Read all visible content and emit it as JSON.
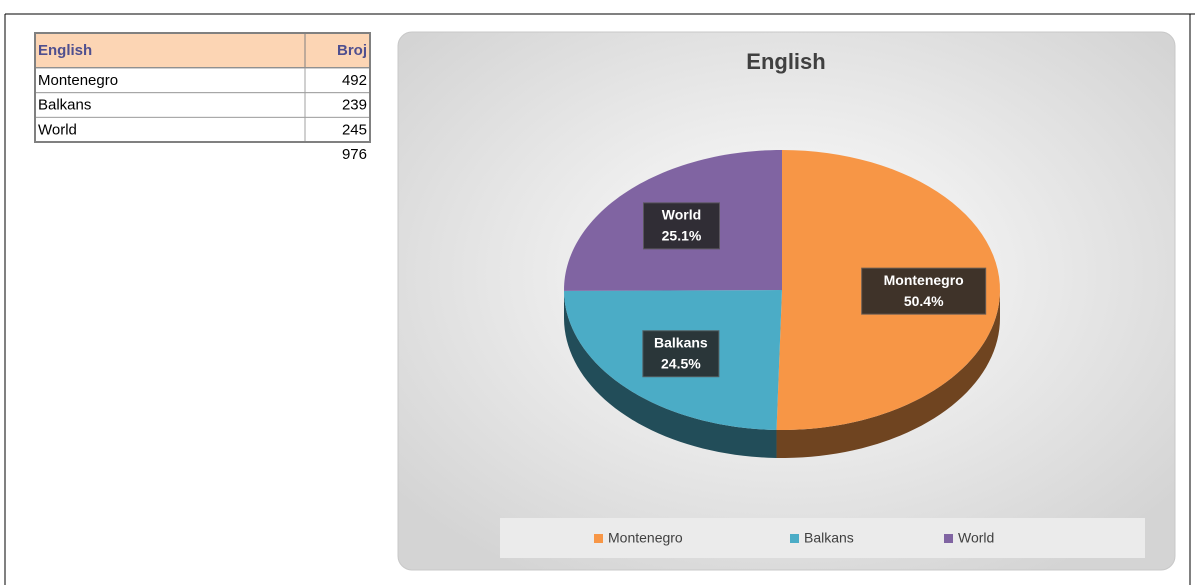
{
  "table": {
    "header": [
      "English",
      "Broj"
    ],
    "rows": [
      [
        "Montenegro",
        492
      ],
      [
        "Balkans",
        239
      ],
      [
        "World",
        245
      ]
    ],
    "total": 976
  },
  "chart_data": {
    "type": "pie",
    "title": "English",
    "categories": [
      "Montenegro",
      "Balkans",
      "World"
    ],
    "values": [
      50.4,
      24.5,
      25.1
    ],
    "value_labels": [
      "50.4%",
      "24.5%",
      "25.1%"
    ],
    "colors": [
      "#f79646",
      "#4bacc6",
      "#8064a2"
    ],
    "legend": "bottom"
  }
}
